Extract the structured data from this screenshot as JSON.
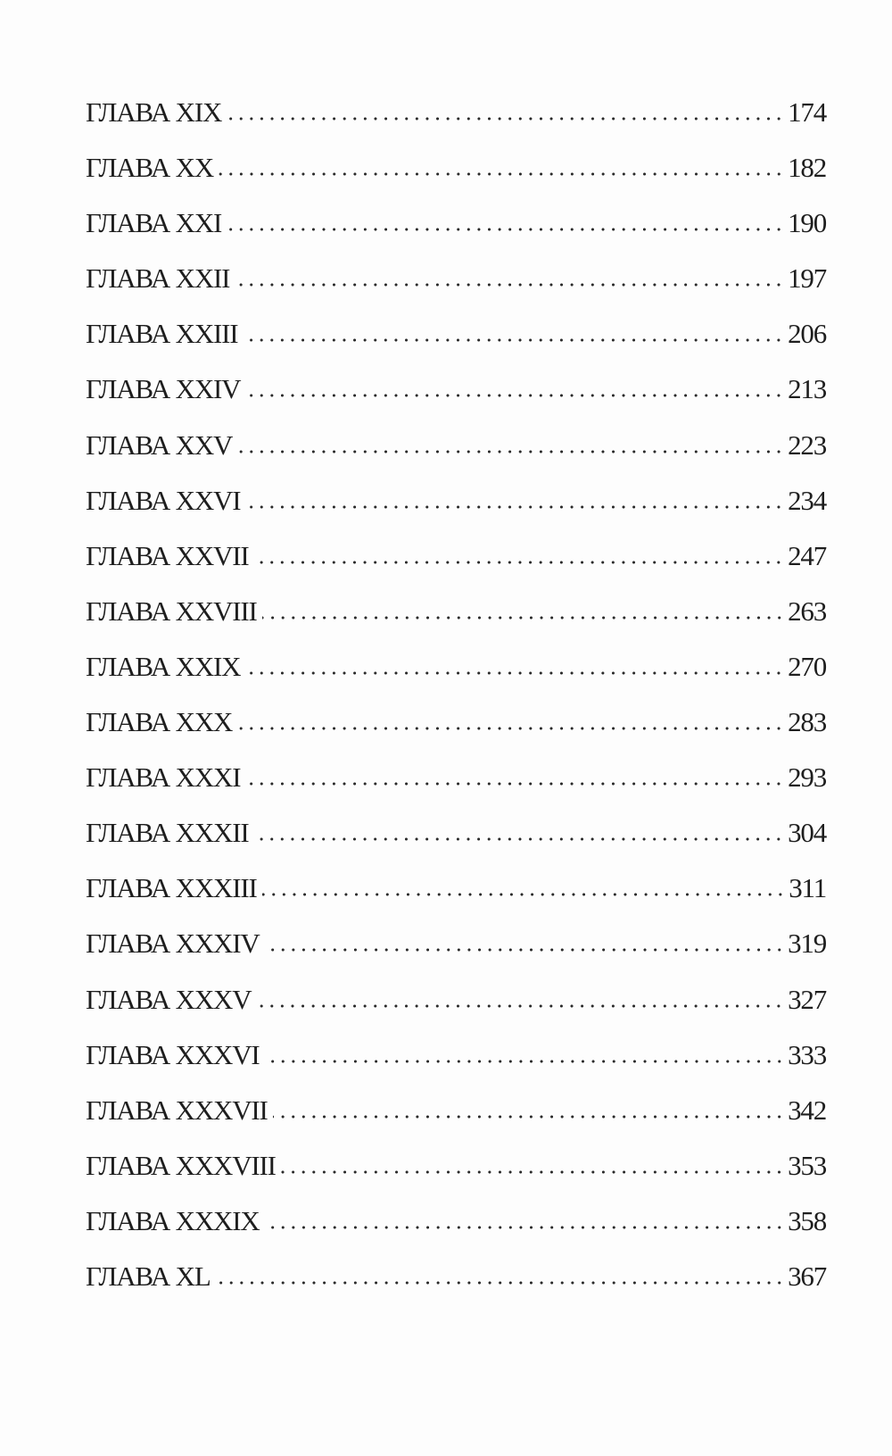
{
  "toc": [
    {
      "title": "ГЛАВА XIX",
      "page": "174"
    },
    {
      "title": "ГЛАВА XX",
      "page": "182"
    },
    {
      "title": "ГЛАВА XXI",
      "page": "190"
    },
    {
      "title": "ГЛАВА XXII",
      "page": "197"
    },
    {
      "title": "ГЛАВА XXIII",
      "page": "206"
    },
    {
      "title": "ГЛАВА XXIV",
      "page": "213"
    },
    {
      "title": "ГЛАВА XXV",
      "page": "223"
    },
    {
      "title": "ГЛАВА XXVI",
      "page": "234"
    },
    {
      "title": "ГЛАВА XXVII",
      "page": "247"
    },
    {
      "title": "ГЛАВА XXVIII",
      "page": "263"
    },
    {
      "title": "ГЛАВА XXIX",
      "page": "270"
    },
    {
      "title": "ГЛАВА XXX",
      "page": "283"
    },
    {
      "title": "ГЛАВА XXXI",
      "page": "293"
    },
    {
      "title": "ГЛАВА XXXII",
      "page": "304"
    },
    {
      "title": "ГЛАВА XXXIII",
      "page": "311"
    },
    {
      "title": "ГЛАВА XXXIV",
      "page": "319"
    },
    {
      "title": "ГЛАВА XXXV",
      "page": "327"
    },
    {
      "title": "ГЛАВА XXXVI",
      "page": "333"
    },
    {
      "title": "ГЛАВА XXXVII",
      "page": "342"
    },
    {
      "title": "ГЛАВА XXXVIII",
      "page": "353"
    },
    {
      "title": "ГЛАВА XXXIX",
      "page": "358"
    },
    {
      "title": "ГЛАВА XL",
      "page": "367"
    }
  ]
}
